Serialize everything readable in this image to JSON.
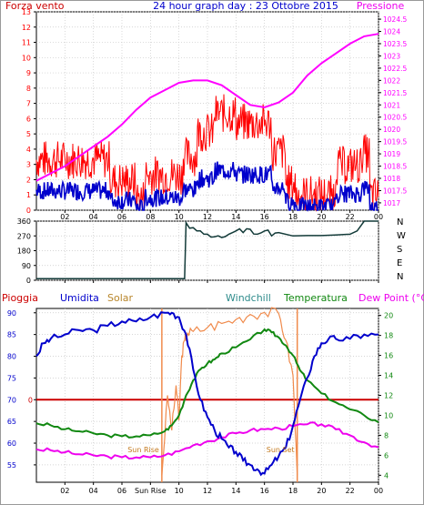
{
  "header": {
    "title": "24 hour graph day : 23 Ottobre 2015",
    "left_label": "Forza vento",
    "right_label": "Pressione"
  },
  "colors": {
    "wind": "#ff0000",
    "gust_avg": "#0000cc",
    "pressure": "#ff00ff",
    "direction": "#123a38",
    "rain": "#cc0000",
    "humidity": "#0000cc",
    "solar": "#f08a4b",
    "windchill": "#2e8b57",
    "temperature": "#118811",
    "dewpoint": "#ee00ee",
    "axis": "#000000",
    "grid": "#c8c8c8"
  },
  "chart_data": [
    {
      "type": "line",
      "panel": "wind-pressure",
      "x_ticks": [
        "02",
        "04",
        "06",
        "08",
        "10",
        "12",
        "14",
        "16",
        "18",
        "20",
        "22",
        "00"
      ],
      "y_left_ticks": [
        "0",
        "1",
        "2",
        "3",
        "4",
        "5",
        "6",
        "7",
        "8",
        "9",
        "10",
        "11",
        "12",
        "13"
      ],
      "y_right_ticks": [
        "1017",
        "1017.5",
        "1018",
        "1018.5",
        "1019",
        "1019.5",
        "1020",
        "1020.5",
        "1021",
        "1021.5",
        "1022",
        "1022.5",
        "1023",
        "1023.5",
        "1024",
        "1024.5"
      ],
      "ylim_left": [
        0,
        13
      ],
      "ylim_right": [
        1016.7,
        1024.8
      ],
      "series": [
        {
          "name": "Pressione",
          "axis": "right",
          "x": [
            0,
            1,
            2,
            3,
            4,
            5,
            6,
            7,
            8,
            9,
            10,
            11,
            12,
            13,
            14,
            15,
            16,
            17,
            18,
            19,
            20,
            21,
            22,
            23,
            24
          ],
          "values": [
            1017.9,
            1018.2,
            1018.5,
            1018.9,
            1019.3,
            1019.7,
            1020.2,
            1020.8,
            1021.3,
            1021.6,
            1021.9,
            1022.0,
            1022.0,
            1021.8,
            1021.4,
            1021.0,
            1020.9,
            1021.1,
            1021.5,
            1022.2,
            1022.7,
            1023.1,
            1023.5,
            1023.8,
            1023.9
          ]
        }
      ]
    },
    {
      "type": "line",
      "panel": "wind-direction",
      "y_ticks": [
        "0",
        "90",
        "180",
        "270",
        "360"
      ],
      "ylim": [
        0,
        360
      ],
      "compass": [
        "N",
        "W",
        "S",
        "E",
        "N"
      ],
      "series": [
        {
          "x": [
            0,
            10.4,
            10.5,
            11,
            11.5,
            12,
            12.5,
            13,
            13.5,
            14,
            14.5,
            15,
            15.5,
            16,
            16.5,
            17,
            18,
            19,
            20,
            21,
            22,
            22.5,
            23,
            24
          ],
          "values": [
            10,
            10,
            350,
            320,
            300,
            280,
            265,
            260,
            280,
            300,
            290,
            310,
            280,
            300,
            270,
            290,
            270,
            272,
            272,
            275,
            280,
            300,
            360,
            360
          ]
        }
      ]
    },
    {
      "type": "line",
      "panel": "humidity-temperature",
      "legend": [
        "Pioggia",
        "Umidita",
        "Solar",
        "Windchill",
        "Temperatura",
        "Dew Point (°C)"
      ],
      "x_ticks": [
        "02",
        "04",
        "06",
        "Sun Rise",
        "10",
        "12",
        "14",
        "16",
        "18",
        "20",
        "22",
        "00"
      ],
      "y_left_ticks": [
        "55",
        "60",
        "65",
        "70",
        "75",
        "80",
        "85",
        "90"
      ],
      "y_right_ticks": [
        "4",
        "6",
        "8",
        "10",
        "12",
        "14",
        "16",
        "18",
        "20"
      ],
      "rain_zero_label": "0",
      "ylim_left": [
        51,
        91
      ],
      "ylim_right": [
        3.3,
        20.7
      ],
      "sun_rise_label": "Sun Rise",
      "sun_set_label": "Sun Set",
      "sun_rise_hour": 8.8,
      "sun_set_hour": 18.3,
      "series": [
        {
          "name": "Umidita",
          "axis": "left",
          "x": [
            0,
            0.5,
            1,
            2,
            3,
            4,
            5,
            6,
            7,
            8,
            9,
            9.5,
            10,
            10.5,
            11,
            11.5,
            12,
            12.5,
            13,
            13.5,
            14,
            14.5,
            15,
            15.5,
            16,
            16.5,
            17,
            17.5,
            18,
            18.5,
            19,
            19.5,
            20,
            20.5,
            21,
            22,
            23,
            24
          ],
          "values": [
            80,
            83,
            84,
            85,
            86,
            86,
            87,
            88,
            88,
            89,
            90,
            90,
            89,
            85,
            77,
            70,
            66,
            63,
            61,
            59,
            58,
            56,
            55,
            54,
            53,
            55,
            57,
            59,
            64,
            70,
            75,
            80,
            83,
            84,
            84,
            84,
            85,
            85
          ]
        },
        {
          "name": "Temperatura",
          "axis": "right",
          "x": [
            0,
            1,
            2,
            3,
            4,
            5,
            6,
            7,
            8,
            9,
            9.5,
            10,
            10.5,
            11,
            11.5,
            12,
            12.5,
            13,
            14,
            15,
            16,
            16.5,
            17,
            17.5,
            18,
            18.5,
            19,
            20,
            21,
            22,
            23,
            24
          ],
          "values": [
            9.2,
            9.0,
            8.6,
            8.4,
            8.2,
            8.0,
            7.9,
            7.9,
            8.0,
            8.4,
            9.0,
            10.0,
            12.0,
            13.5,
            14.6,
            15.2,
            15.6,
            16.2,
            16.8,
            17.6,
            18.6,
            18.3,
            17.8,
            17.0,
            16.0,
            14.5,
            13.5,
            12.2,
            11.3,
            10.6,
            10.0,
            9.3
          ]
        },
        {
          "name": "Dew Point (°C)",
          "axis": "right",
          "x": [
            0,
            1,
            2,
            3,
            4,
            5,
            6,
            7,
            8,
            9,
            10,
            11,
            12,
            13,
            14,
            15,
            16,
            17,
            18,
            19,
            20,
            21,
            22,
            23,
            24
          ],
          "values": [
            6.6,
            6.5,
            6.3,
            6.1,
            6.0,
            5.9,
            5.8,
            5.8,
            5.8,
            6.0,
            6.4,
            7.0,
            7.4,
            7.8,
            8.2,
            8.5,
            8.6,
            8.7,
            8.9,
            9.1,
            9.1,
            8.6,
            8.0,
            7.3,
            6.8
          ]
        },
        {
          "name": "Solar",
          "axis": "right",
          "x": [
            8.8,
            9.2,
            9.5,
            9.8,
            10.0,
            10.2,
            10.4,
            10.6,
            11,
            12,
            13,
            14,
            15,
            16,
            17,
            17.5,
            18,
            18.3
          ],
          "values": [
            4.0,
            12.0,
            8.5,
            13.0,
            9.5,
            16.0,
            17.5,
            18.2,
            18.4,
            18.8,
            19.2,
            19.6,
            20.1,
            20.3,
            20.2,
            17.5,
            14.0,
            4.0
          ]
        }
      ]
    }
  ]
}
